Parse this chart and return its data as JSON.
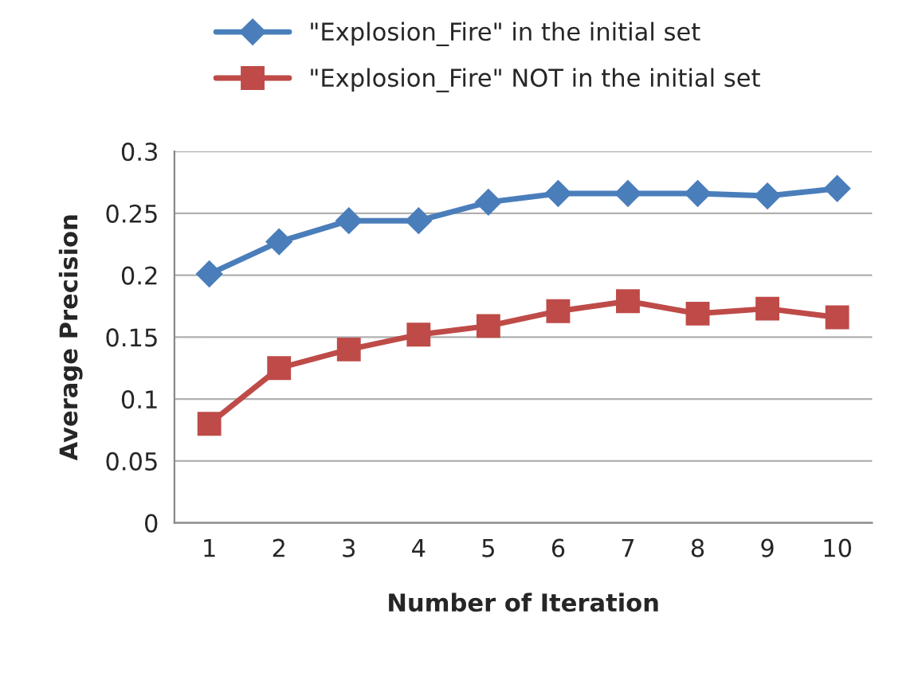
{
  "chart_data": {
    "type": "line",
    "xlabel": "Number of Iteration",
    "ylabel": "Average Precision",
    "categories": [
      "1",
      "2",
      "3",
      "4",
      "5",
      "6",
      "7",
      "8",
      "9",
      "10"
    ],
    "series": [
      {
        "name": "\"Explosion_Fire\" in the initial set",
        "color": "#4a7ebb",
        "marker": "diamond",
        "values": [
          0.201,
          0.227,
          0.244,
          0.244,
          0.259,
          0.266,
          0.266,
          0.266,
          0.264,
          0.27
        ]
      },
      {
        "name": "\"Explosion_Fire\" NOT in the initial set",
        "color": "#be4b48",
        "marker": "square",
        "values": [
          0.08,
          0.125,
          0.14,
          0.152,
          0.159,
          0.171,
          0.179,
          0.169,
          0.173,
          0.166
        ]
      }
    ],
    "ylim": [
      0,
      0.3
    ],
    "yticks": [
      {
        "value": 0,
        "label": "0"
      },
      {
        "value": 0.05,
        "label": "0.05"
      },
      {
        "value": 0.1,
        "label": "0.1"
      },
      {
        "value": 0.15,
        "label": "0.15"
      },
      {
        "value": 0.2,
        "label": "0.2"
      },
      {
        "value": 0.25,
        "label": "0.25"
      },
      {
        "value": 0.3,
        "label": "0.3"
      }
    ],
    "grid": "y",
    "legend": "top",
    "line_style": "solid"
  }
}
